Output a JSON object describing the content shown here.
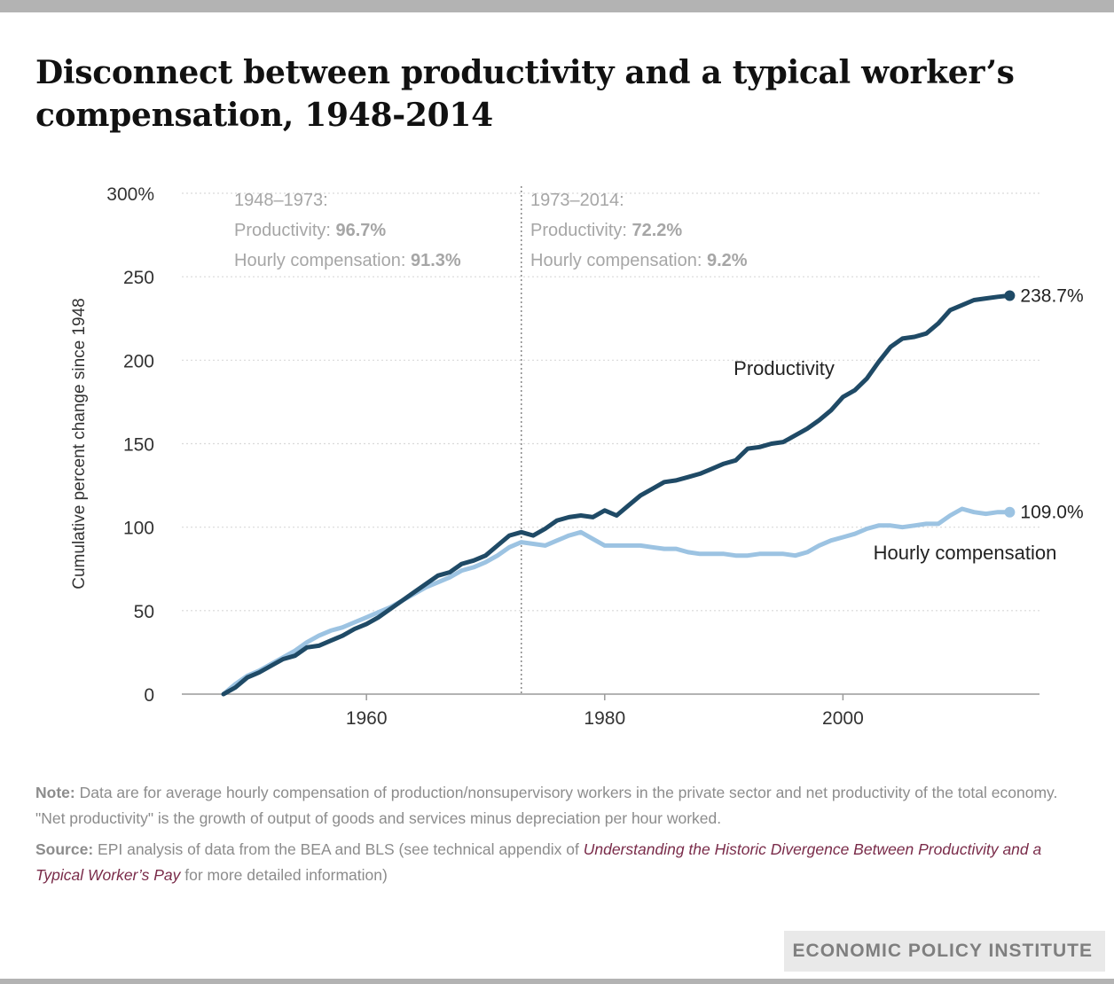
{
  "title": "Disconnect between productivity and a typical worker’s compensation, 1948-2014",
  "colors": {
    "productivity": "#1f4a66",
    "compensation": "#9cc3e2",
    "grid": "#d9d9d9",
    "axis": "#9a9a9a",
    "annotation": "#a6a6a6",
    "source_link": "#7a2c4a"
  },
  "chart_data": {
    "type": "line",
    "ylabel": "Cumulative percent change since 1948",
    "xlabel": "",
    "xlim": [
      1944.5,
      2016.5
    ],
    "ylim": [
      0,
      300
    ],
    "y_ticks": [
      0,
      50,
      100,
      150,
      200,
      250,
      300
    ],
    "y_tick_labels": [
      "0",
      "50",
      "100",
      "150",
      "200",
      "250",
      "300%"
    ],
    "x_ticks": [
      1960,
      1980,
      2000
    ],
    "x_tick_labels": [
      "1960",
      "1980",
      "2000"
    ],
    "grid": "horizontal dotted",
    "divider_year": 1973,
    "periods": [
      {
        "label": "1948–1973:",
        "productivity_label": "Productivity:",
        "productivity_value": "96.7%",
        "compensation_label": "Hourly compensation:",
        "compensation_value": "91.3%"
      },
      {
        "label": "1973–2014:",
        "productivity_label": "Productivity:",
        "productivity_value": "72.2%",
        "compensation_label": "Hourly compensation:",
        "compensation_value": "9.2%"
      }
    ],
    "series": [
      {
        "name": "Productivity",
        "end_label": "238.7%",
        "x": [
          1948,
          1949,
          1950,
          1951,
          1952,
          1953,
          1954,
          1955,
          1956,
          1957,
          1958,
          1959,
          1960,
          1961,
          1962,
          1963,
          1964,
          1965,
          1966,
          1967,
          1968,
          1969,
          1970,
          1971,
          1972,
          1973,
          1974,
          1975,
          1976,
          1977,
          1978,
          1979,
          1980,
          1981,
          1982,
          1983,
          1984,
          1985,
          1986,
          1987,
          1988,
          1989,
          1990,
          1991,
          1992,
          1993,
          1994,
          1995,
          1996,
          1997,
          1998,
          1999,
          2000,
          2001,
          2002,
          2003,
          2004,
          2005,
          2006,
          2007,
          2008,
          2009,
          2010,
          2011,
          2012,
          2013,
          2014
        ],
        "values": [
          0,
          4,
          10,
          13,
          17,
          21,
          23,
          28,
          29,
          32,
          35,
          39,
          42,
          46,
          51,
          56,
          61,
          66,
          71,
          73,
          78,
          80,
          83,
          89,
          95,
          97,
          95,
          99,
          104,
          106,
          107,
          106,
          110,
          107,
          113,
          119,
          123,
          127,
          128,
          130,
          132,
          135,
          138,
          140,
          147,
          148,
          150,
          151,
          155,
          159,
          164,
          170,
          178,
          182,
          189,
          199,
          208,
          213,
          214,
          216,
          222,
          230,
          233,
          236,
          237,
          238,
          238.7
        ]
      },
      {
        "name": "Hourly compensation",
        "end_label": "109.0%",
        "x": [
          1948,
          1949,
          1950,
          1951,
          1952,
          1953,
          1954,
          1955,
          1956,
          1957,
          1958,
          1959,
          1960,
          1961,
          1962,
          1963,
          1964,
          1965,
          1966,
          1967,
          1968,
          1969,
          1970,
          1971,
          1972,
          1973,
          1974,
          1975,
          1976,
          1977,
          1978,
          1979,
          1980,
          1981,
          1982,
          1983,
          1984,
          1985,
          1986,
          1987,
          1988,
          1989,
          1990,
          1991,
          1992,
          1993,
          1994,
          1995,
          1996,
          1997,
          1998,
          1999,
          2000,
          2001,
          2002,
          2003,
          2004,
          2005,
          2006,
          2007,
          2008,
          2009,
          2010,
          2011,
          2012,
          2013,
          2014
        ],
        "values": [
          0,
          6,
          11,
          14,
          18,
          22,
          26,
          31,
          35,
          38,
          40,
          43,
          46,
          49,
          52,
          56,
          60,
          64,
          67,
          70,
          74,
          76,
          79,
          83,
          88,
          91,
          90,
          89,
          92,
          95,
          97,
          93,
          89,
          89,
          89,
          89,
          88,
          87,
          87,
          85,
          84,
          84,
          84,
          83,
          83,
          84,
          84,
          84,
          83,
          85,
          89,
          92,
          94,
          96,
          99,
          101,
          101,
          100,
          101,
          102,
          102,
          107,
          111,
          109,
          108,
          109,
          109.0
        ]
      }
    ]
  },
  "notes": {
    "note_label": "Note:",
    "note_text": " Data are for average hourly compensation of production/nonsupervisory workers in the private sector and net productivity of the total economy. \"Net productivity\" is the growth of output of goods and services minus depreciation per hour worked.",
    "source_label": "Source:",
    "source_text_before": " EPI analysis of data from the BEA and BLS (see technical appendix of ",
    "source_link_text": "Understanding the Historic Divergence Between Productivity and a Typical Worker’s Pay",
    "source_text_after": " for more detailed information)"
  },
  "footer": {
    "brand": "ECONOMIC POLICY INSTITUTE"
  }
}
